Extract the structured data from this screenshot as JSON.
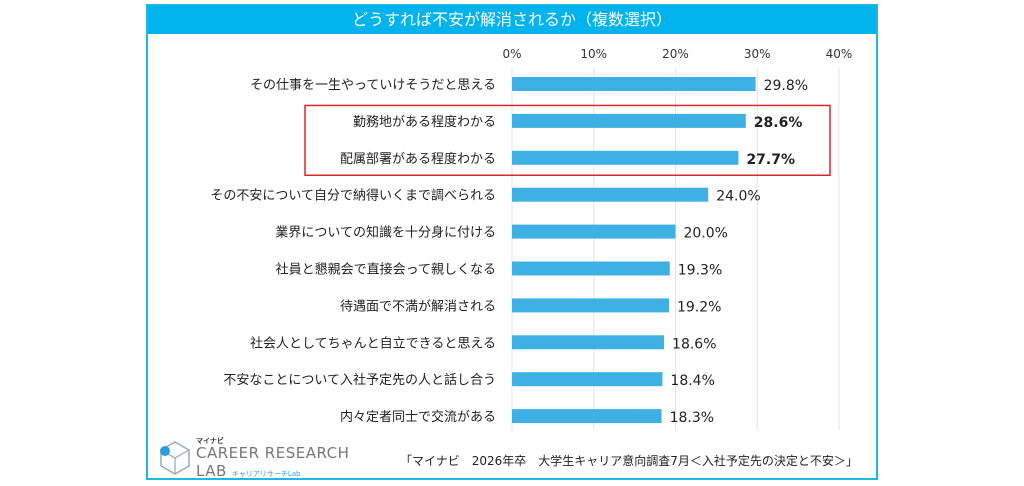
{
  "title": "どうすれば不安が解消されるか（複数選択）",
  "chart_data": {
    "type": "bar",
    "orientation": "horizontal",
    "title": "どうすれば不安が解消されるか（複数選択）",
    "categories": [
      "その仕事を一生やっていけそうだと思える",
      "勤務地がある程度わかる",
      "配属部署がある程度わかる",
      "その不安について自分で納得いくまで調べられる",
      "業界についての知識を十分身に付ける",
      "社員と懇親会で直接会って親しくなる",
      "待遇面で不満が解消される",
      "社会人としてちゃんと自立できると思える",
      "不安なことについて入社予定先の人と話し合う",
      "内々定者同士で交流がある"
    ],
    "values": [
      29.8,
      28.6,
      27.7,
      24.0,
      20.0,
      19.3,
      19.2,
      18.6,
      18.4,
      18.3
    ],
    "value_labels": [
      "29.8%",
      "28.6%",
      "27.7%",
      "24.0%",
      "20.0%",
      "19.3%",
      "19.2%",
      "18.6%",
      "18.4%",
      "18.3%"
    ],
    "highlighted": [
      1,
      2
    ],
    "xlim": [
      0,
      40
    ],
    "xticks": [
      "0%",
      "10%",
      "20%",
      "30%",
      "40%"
    ],
    "grid": true,
    "colors": {
      "bar": "#3fb0e3",
      "title_bg": "#00b3ec",
      "highlight": "#d9262c",
      "first_label": "#d9262c"
    }
  },
  "logo": {
    "small": "マイナビ",
    "line1": "CAREER RESEARCH",
    "line2": "LAB",
    "sub": "キャリアリサーチLab"
  },
  "source": "「マイナビ　2026年卒　大学生キャリア意向調査7月＜入社予定先の決定と不安＞」"
}
